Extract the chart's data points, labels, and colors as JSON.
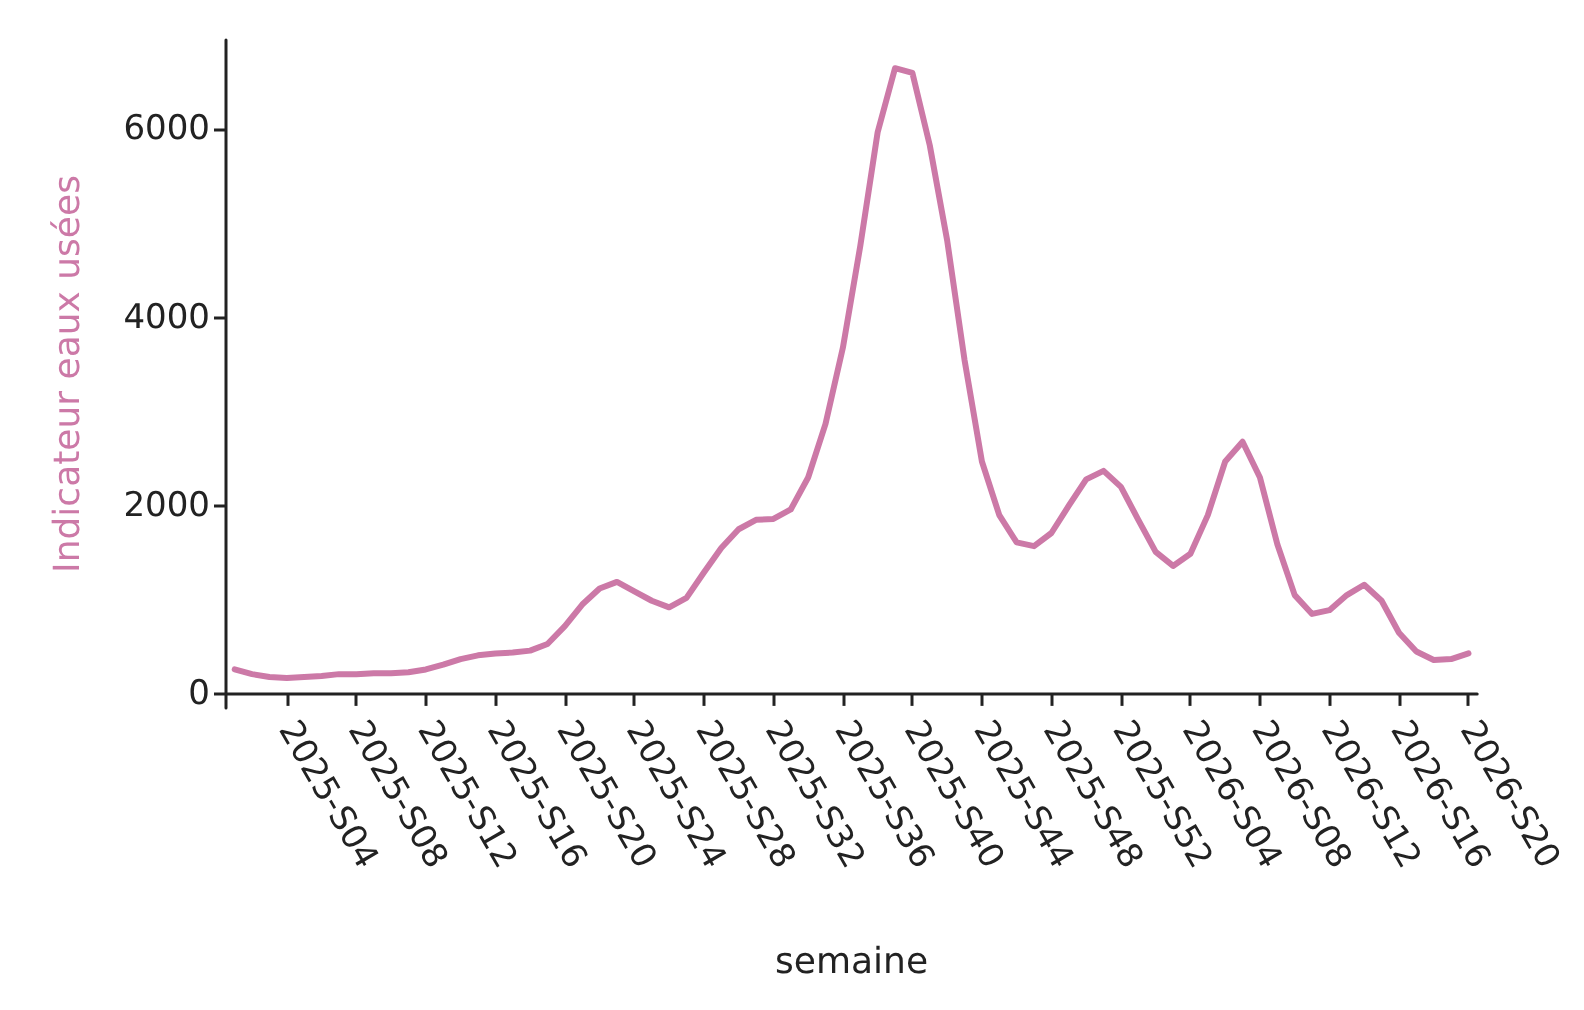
{
  "chart_data": {
    "type": "line",
    "xlabel": "semaine",
    "ylabel": "Indicateur eaux usées",
    "categories": [
      null,
      null,
      null,
      "2025-S04",
      null,
      null,
      null,
      "2025-S08",
      null,
      null,
      null,
      "2025-S12",
      null,
      null,
      null,
      "2025-S16",
      null,
      null,
      null,
      "2025-S20",
      null,
      null,
      null,
      "2025-S24",
      null,
      null,
      null,
      "2025-S28",
      null,
      null,
      null,
      "2025-S32",
      null,
      null,
      null,
      "2025-S36",
      null,
      null,
      null,
      "2025-S40",
      null,
      null,
      null,
      "2025-S44",
      null,
      null,
      null,
      "2025-S48",
      null,
      null,
      null,
      "2025-S52",
      null,
      null,
      null,
      "2026-S04",
      null,
      null,
      null,
      "2026-S08",
      null,
      null,
      null,
      "2026-S12",
      null,
      null,
      null,
      "2026-S16",
      null,
      null,
      null,
      "2026-S20"
    ],
    "series": [
      {
        "color": "#cc79a7",
        "values": [
          260,
          210,
          180,
          170,
          180,
          190,
          210,
          210,
          220,
          220,
          230,
          260,
          310,
          370,
          410,
          430,
          440,
          460,
          530,
          720,
          950,
          1120,
          1190,
          1090,
          990,
          920,
          1020,
          1290,
          1550,
          1750,
          1850,
          1860,
          1960,
          2300,
          2870,
          3680,
          4760,
          5970,
          6650,
          6600,
          5830,
          4820,
          3550,
          2470,
          1900,
          1610,
          1570,
          1710,
          2000,
          2280,
          2370,
          2200,
          1850,
          1510,
          1360,
          1490,
          1900,
          2470,
          2680,
          2300,
          1590,
          1050,
          850,
          890,
          1050,
          1160,
          990,
          650,
          450,
          360,
          370,
          430
        ]
      }
    ],
    "ylim": [
      -150,
      6950
    ],
    "yticks": [
      0,
      2000,
      4000,
      6000
    ],
    "grid": false,
    "marker": "none",
    "line_style": "solid"
  }
}
